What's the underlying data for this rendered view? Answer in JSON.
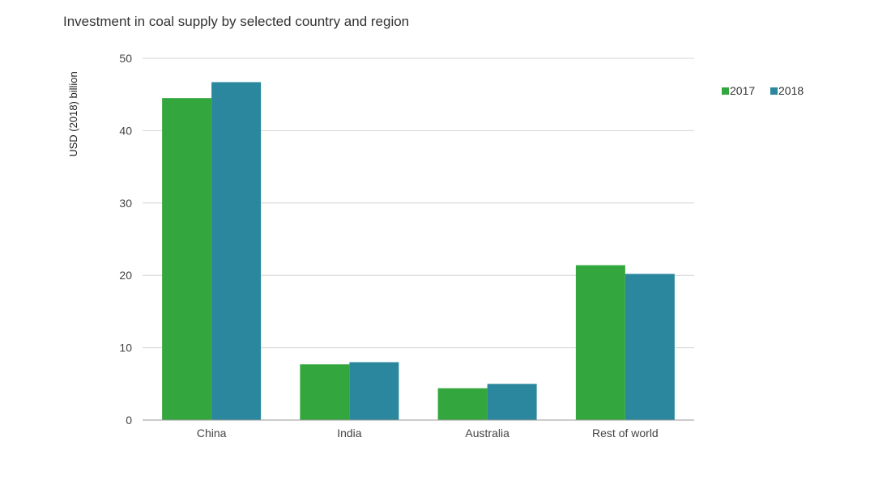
{
  "chart_data": {
    "type": "bar",
    "title": "Investment in coal supply by selected country and region",
    "ylabel": "USD (2018) billion",
    "xlabel": "",
    "ylim": [
      0,
      50
    ],
    "yticks": [
      0,
      10,
      20,
      30,
      40,
      50
    ],
    "grid": true,
    "legend_position": "top-right",
    "categories": [
      "China",
      "India",
      "Australia",
      "Rest of world"
    ],
    "series": [
      {
        "name": "2017",
        "color": "#33a73d",
        "values": [
          44.5,
          7.7,
          4.4,
          21.4
        ]
      },
      {
        "name": "2018",
        "color": "#2a879e",
        "values": [
          46.7,
          8.0,
          5.0,
          20.2
        ]
      }
    ]
  }
}
